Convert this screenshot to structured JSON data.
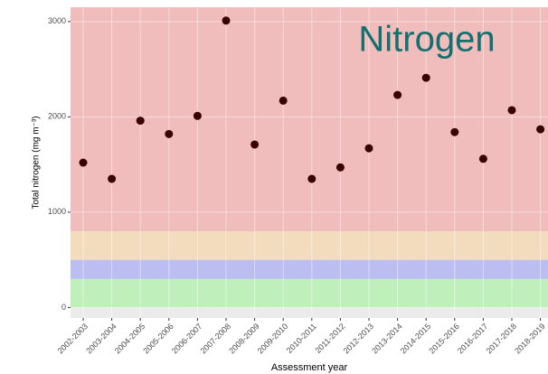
{
  "chart_data": {
    "type": "scatter",
    "annotation": "Nitrogen",
    "xlabel": "Assessment year",
    "ylabel": "Total nitrogen (mg m⁻³)",
    "categories": [
      "2002-2003",
      "2003-2004",
      "2004-2005",
      "2005-2006",
      "2006-2007",
      "2007-2008",
      "2008-2009",
      "2009-2010",
      "2010-2011",
      "2011-2012",
      "2012-2013",
      "2013-2014",
      "2014-2015",
      "2015-2016",
      "2016-2017",
      "2017-2018",
      "2018-2019"
    ],
    "values": [
      1520,
      1350,
      1960,
      1820,
      2010,
      3010,
      1710,
      2170,
      1350,
      1470,
      1670,
      2230,
      2410,
      1840,
      1560,
      2070,
      1870
    ],
    "color": "#3a0000",
    "ylim": [
      -110,
      3150
    ],
    "yticks": [
      0,
      1000,
      2000,
      3000
    ],
    "grid": true,
    "background": "#ebebeb",
    "bands": [
      {
        "from": 0,
        "to": 300,
        "color": "#bff0bb"
      },
      {
        "from": 300,
        "to": 500,
        "color": "#bcbdf0"
      },
      {
        "from": 500,
        "to": 800,
        "color": "#f2dcbd"
      },
      {
        "from": 800,
        "color": "#f0bcbc"
      }
    ]
  }
}
